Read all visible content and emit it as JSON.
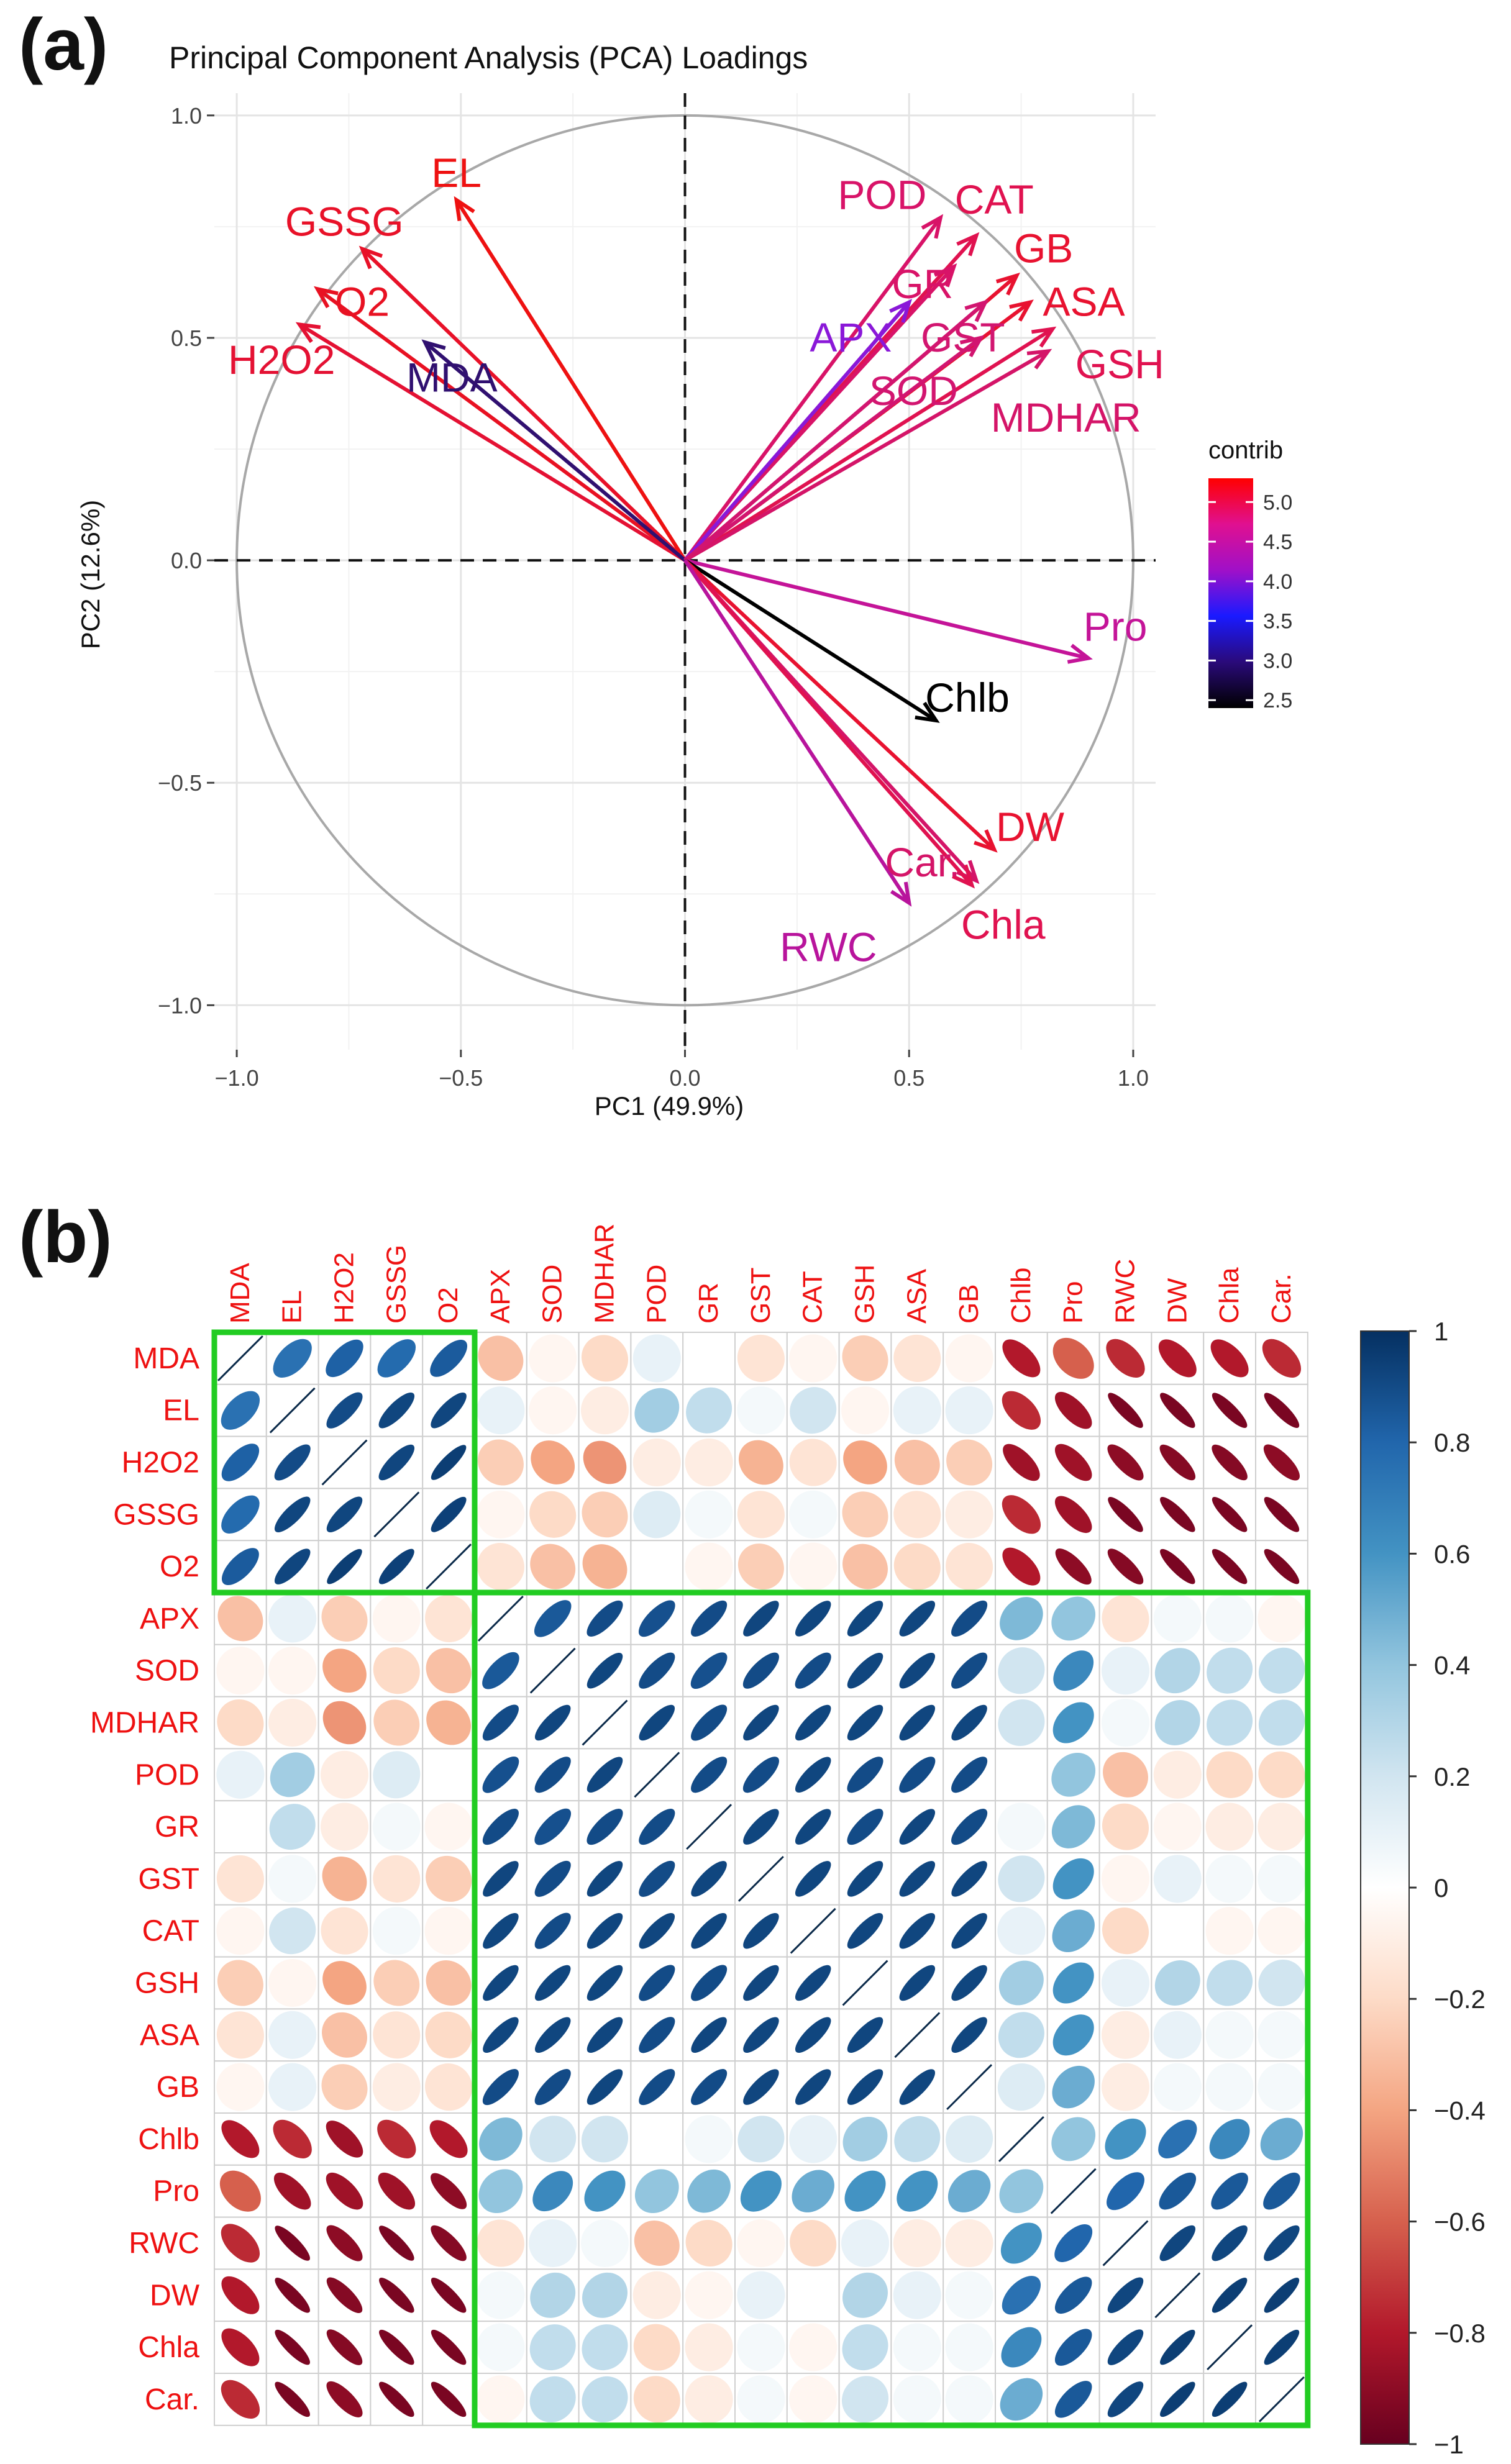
{
  "panel_labels": {
    "a": "(a)",
    "b": "(b)"
  },
  "chart_data": [
    {
      "type": "scatter",
      "subtype": "pca-biplot-loadings",
      "title": "Principal Component Analysis (PCA) Loadings",
      "xlabel": "PC1 (49.9%)",
      "ylabel": "PC2 (12.6%)",
      "xlim": [
        -1.05,
        1.05
      ],
      "ylim": [
        -1.1,
        1.05
      ],
      "xticks": [
        -1.0,
        -0.5,
        0.0,
        0.5,
        1.0
      ],
      "yticks": [
        -1.0,
        -0.5,
        0.0,
        0.5,
        1.0
      ],
      "xtick_labels": [
        "−1.0",
        "−0.5",
        "0.0",
        "0.5",
        "1.0"
      ],
      "ytick_labels": [
        "−1.0",
        "−0.5",
        "0.0",
        "0.5",
        "1.0"
      ],
      "grid": true,
      "legend": {
        "title": "contrib",
        "placement": "right",
        "range": [
          2.4,
          5.3
        ],
        "ticks": [
          5.0,
          4.5,
          4.0,
          3.5,
          3.0,
          2.5
        ],
        "tick_labels": [
          "5.0",
          "4.5",
          "4.0",
          "3.5",
          "3.0",
          "2.5"
        ],
        "colors": [
          "#000000",
          "#2a0a7a",
          "#1a1aff",
          "#a010c8",
          "#e01090",
          "#ff0000"
        ]
      },
      "arrows": [
        {
          "name": "EL",
          "x": -0.51,
          "y": 0.81,
          "lx": -0.51,
          "ly": 0.87,
          "color": "#ee1111"
        },
        {
          "name": "GSSG",
          "x": -0.72,
          "y": 0.7,
          "lx": -0.76,
          "ly": 0.76,
          "color": "#e81128"
        },
        {
          "name": "O2",
          "x": -0.82,
          "y": 0.61,
          "lx": -0.72,
          "ly": 0.58,
          "color": "#e81122"
        },
        {
          "name": "H2O2",
          "x": -0.86,
          "y": 0.53,
          "lx": -0.9,
          "ly": 0.45,
          "color": "#e41133"
        },
        {
          "name": "MDA",
          "x": -0.58,
          "y": 0.49,
          "lx": -0.52,
          "ly": 0.41,
          "color": "#301070"
        },
        {
          "name": "POD",
          "x": 0.57,
          "y": 0.77,
          "lx": 0.44,
          "ly": 0.82,
          "color": "#d81368"
        },
        {
          "name": "CAT",
          "x": 0.65,
          "y": 0.73,
          "lx": 0.69,
          "ly": 0.81,
          "color": "#e01250"
        },
        {
          "name": "GB",
          "x": 0.74,
          "y": 0.64,
          "lx": 0.8,
          "ly": 0.7,
          "color": "#e81230"
        },
        {
          "name": "GR",
          "x": 0.6,
          "y": 0.66,
          "lx": 0.53,
          "ly": 0.62,
          "color": "#d81368"
        },
        {
          "name": "ASA",
          "x": 0.77,
          "y": 0.58,
          "lx": 0.89,
          "ly": 0.58,
          "color": "#e81230"
        },
        {
          "name": "APX",
          "x": 0.5,
          "y": 0.58,
          "lx": 0.37,
          "ly": 0.5,
          "color": "#8a18d8"
        },
        {
          "name": "GST",
          "x": 0.67,
          "y": 0.58,
          "lx": 0.62,
          "ly": 0.5,
          "color": "#d21570"
        },
        {
          "name": "GSH",
          "x": 0.82,
          "y": 0.52,
          "lx": 0.97,
          "ly": 0.44,
          "color": "#e01250"
        },
        {
          "name": "SOD",
          "x": 0.66,
          "y": 0.5,
          "lx": 0.51,
          "ly": 0.38,
          "color": "#d21570"
        },
        {
          "name": "MDHAR",
          "x": 0.81,
          "y": 0.47,
          "lx": 0.85,
          "ly": 0.32,
          "color": "#d41468"
        },
        {
          "name": "Pro",
          "x": 0.9,
          "y": -0.22,
          "lx": 0.96,
          "ly": -0.15,
          "color": "#c41498"
        },
        {
          "name": "Chlb",
          "x": 0.56,
          "y": -0.36,
          "lx": 0.63,
          "ly": -0.31,
          "color": "#000000"
        },
        {
          "name": "DW",
          "x": 0.69,
          "y": -0.65,
          "lx": 0.77,
          "ly": -0.6,
          "color": "#e81230"
        },
        {
          "name": "Car.",
          "x": 0.65,
          "y": -0.72,
          "lx": 0.53,
          "ly": -0.68,
          "color": "#d41468"
        },
        {
          "name": "Chla",
          "x": 0.64,
          "y": -0.73,
          "lx": 0.71,
          "ly": -0.82,
          "color": "#e01250"
        },
        {
          "name": "RWC",
          "x": 0.5,
          "y": -0.77,
          "lx": 0.32,
          "ly": -0.87,
          "color": "#b8149c"
        }
      ]
    },
    {
      "type": "heatmap",
      "subtype": "correlation-matrix-ellipses",
      "variables": [
        "MDA",
        "EL",
        "H2O2",
        "GSSG",
        "O2",
        "APX",
        "SOD",
        "MDHAR",
        "POD",
        "GR",
        "GST",
        "CAT",
        "GSH",
        "ASA",
        "GB",
        "Chlb",
        "Pro",
        "RWC",
        "DW",
        "Chla",
        "Car."
      ],
      "matrix": [
        [
          1.0,
          0.75,
          0.82,
          0.78,
          0.84,
          -0.3,
          -0.05,
          -0.2,
          0.1,
          0.0,
          -0.15,
          -0.05,
          -0.25,
          -0.15,
          -0.05,
          -0.8,
          -0.6,
          -0.75,
          -0.8,
          -0.8,
          -0.75
        ],
        [
          0.75,
          1.0,
          0.9,
          0.92,
          0.92,
          0.1,
          -0.05,
          -0.1,
          0.35,
          0.25,
          0.05,
          0.2,
          -0.05,
          0.1,
          0.1,
          -0.75,
          -0.85,
          -0.95,
          -0.95,
          -0.95,
          -0.95
        ],
        [
          0.82,
          0.9,
          1.0,
          0.92,
          0.95,
          -0.25,
          -0.4,
          -0.45,
          -0.1,
          -0.1,
          -0.35,
          -0.15,
          -0.4,
          -0.3,
          -0.25,
          -0.85,
          -0.85,
          -0.9,
          -0.92,
          -0.92,
          -0.9
        ],
        [
          0.78,
          0.92,
          0.92,
          1.0,
          0.94,
          -0.05,
          -0.2,
          -0.25,
          0.15,
          0.05,
          -0.15,
          0.05,
          -0.25,
          -0.15,
          -0.1,
          -0.75,
          -0.85,
          -0.95,
          -0.95,
          -0.95,
          -0.95
        ],
        [
          0.84,
          0.92,
          0.95,
          0.94,
          1.0,
          -0.15,
          -0.3,
          -0.35,
          0.0,
          -0.05,
          -0.25,
          -0.05,
          -0.3,
          -0.2,
          -0.15,
          -0.8,
          -0.9,
          -0.92,
          -0.95,
          -0.95,
          -0.95
        ],
        [
          -0.3,
          0.1,
          -0.25,
          -0.05,
          -0.15,
          1.0,
          0.85,
          0.9,
          0.88,
          0.9,
          0.92,
          0.92,
          0.92,
          0.92,
          0.9,
          0.45,
          0.4,
          -0.15,
          0.05,
          0.05,
          -0.05
        ],
        [
          -0.05,
          -0.05,
          -0.4,
          -0.2,
          -0.3,
          0.85,
          1.0,
          0.92,
          0.9,
          0.88,
          0.9,
          0.9,
          0.92,
          0.92,
          0.9,
          0.2,
          0.65,
          0.1,
          0.3,
          0.25,
          0.25
        ],
        [
          -0.2,
          -0.1,
          -0.45,
          -0.25,
          -0.35,
          0.9,
          0.92,
          1.0,
          0.92,
          0.9,
          0.92,
          0.92,
          0.92,
          0.92,
          0.92,
          0.2,
          0.6,
          0.05,
          0.3,
          0.25,
          0.25
        ],
        [
          0.1,
          0.35,
          -0.1,
          0.15,
          0.0,
          0.88,
          0.9,
          0.92,
          1.0,
          0.9,
          0.9,
          0.92,
          0.9,
          0.9,
          0.9,
          0.0,
          0.4,
          -0.3,
          -0.1,
          -0.2,
          -0.2
        ],
        [
          0.0,
          0.25,
          -0.1,
          0.05,
          -0.05,
          0.9,
          0.88,
          0.9,
          0.9,
          1.0,
          0.92,
          0.92,
          0.9,
          0.92,
          0.9,
          0.05,
          0.45,
          -0.2,
          -0.05,
          -0.1,
          -0.1
        ],
        [
          -0.15,
          0.05,
          -0.35,
          -0.15,
          -0.25,
          0.92,
          0.9,
          0.92,
          0.9,
          0.92,
          1.0,
          0.92,
          0.92,
          0.92,
          0.92,
          0.2,
          0.6,
          -0.05,
          0.1,
          0.05,
          0.05
        ],
        [
          -0.05,
          0.2,
          -0.15,
          0.05,
          -0.05,
          0.92,
          0.9,
          0.92,
          0.92,
          0.92,
          0.92,
          1.0,
          0.92,
          0.92,
          0.92,
          0.1,
          0.5,
          -0.2,
          0.0,
          -0.05,
          -0.05
        ],
        [
          -0.25,
          -0.05,
          -0.4,
          -0.25,
          -0.3,
          0.92,
          0.92,
          0.92,
          0.9,
          0.9,
          0.92,
          0.92,
          1.0,
          0.92,
          0.92,
          0.35,
          0.6,
          0.1,
          0.3,
          0.25,
          0.2
        ],
        [
          -0.15,
          0.1,
          -0.3,
          -0.15,
          -0.2,
          0.92,
          0.92,
          0.92,
          0.9,
          0.92,
          0.92,
          0.92,
          0.92,
          1.0,
          0.92,
          0.25,
          0.6,
          -0.1,
          0.1,
          0.05,
          0.05
        ],
        [
          -0.05,
          0.1,
          -0.25,
          -0.1,
          -0.15,
          0.9,
          0.9,
          0.92,
          0.9,
          0.9,
          0.92,
          0.92,
          0.92,
          0.92,
          1.0,
          0.15,
          0.5,
          -0.1,
          0.05,
          0.05,
          0.05
        ],
        [
          -0.8,
          -0.75,
          -0.85,
          -0.75,
          -0.8,
          0.45,
          0.2,
          0.2,
          0.0,
          0.05,
          0.2,
          0.1,
          0.35,
          0.25,
          0.15,
          1.0,
          0.4,
          0.6,
          0.75,
          0.65,
          0.5
        ],
        [
          -0.6,
          -0.85,
          -0.85,
          -0.85,
          -0.9,
          0.4,
          0.65,
          0.6,
          0.4,
          0.45,
          0.6,
          0.5,
          0.6,
          0.6,
          0.5,
          0.4,
          1.0,
          0.8,
          0.85,
          0.85,
          0.85
        ],
        [
          -0.75,
          -0.95,
          -0.9,
          -0.95,
          -0.92,
          -0.15,
          0.1,
          0.05,
          -0.3,
          -0.2,
          -0.05,
          -0.2,
          0.1,
          -0.1,
          -0.1,
          0.6,
          0.8,
          1.0,
          0.92,
          0.92,
          0.92
        ],
        [
          -0.8,
          -0.95,
          -0.92,
          -0.95,
          -0.95,
          0.05,
          0.3,
          0.3,
          -0.1,
          -0.05,
          0.1,
          0.0,
          0.3,
          0.1,
          0.05,
          0.75,
          0.85,
          0.92,
          1.0,
          0.95,
          0.95
        ],
        [
          -0.8,
          -0.95,
          -0.92,
          -0.95,
          -0.95,
          0.05,
          0.25,
          0.25,
          -0.2,
          -0.1,
          0.05,
          -0.05,
          0.25,
          0.05,
          0.05,
          0.65,
          0.85,
          0.92,
          0.95,
          1.0,
          0.95
        ],
        [
          -0.75,
          -0.95,
          -0.9,
          -0.95,
          -0.95,
          -0.05,
          0.25,
          0.25,
          -0.2,
          -0.1,
          0.05,
          -0.05,
          0.2,
          0.05,
          0.05,
          0.5,
          0.85,
          0.92,
          0.95,
          0.95,
          1.0
        ]
      ],
      "color_range": [
        -1,
        1
      ],
      "colorbar_ticks": [
        1,
        0.8,
        0.6,
        0.4,
        0.2,
        0,
        -0.2,
        -0.4,
        -0.6,
        -0.8,
        -1
      ],
      "colorbar_labels": [
        "1",
        "0.8",
        "0.6",
        "0.4",
        "0.2",
        "0",
        "−0.2",
        "−0.4",
        "−0.6",
        "−0.8",
        "−1"
      ],
      "highlight_blocks": [
        {
          "from": "MDA",
          "to": "O2",
          "color": "#22cc22"
        },
        {
          "from": "APX",
          "to": "Car.",
          "color": "#22cc22"
        }
      ]
    }
  ]
}
